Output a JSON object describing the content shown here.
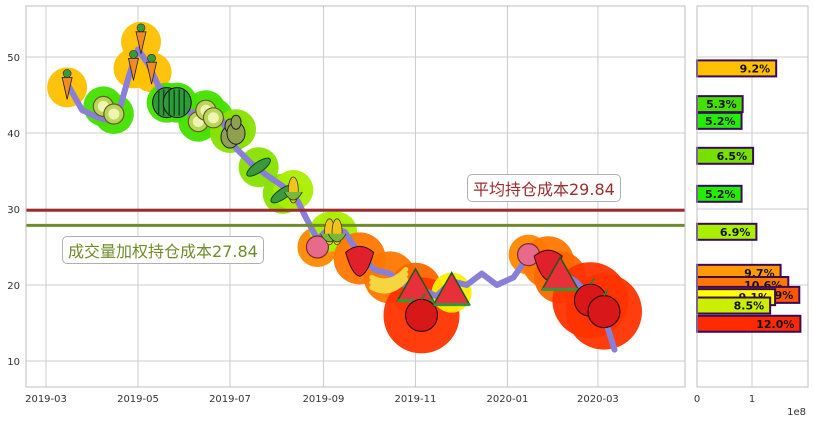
{
  "chart_data": [
    {
      "type": "line",
      "title": "",
      "xlabel": "",
      "ylabel": "",
      "x_tick_labels": [
        "2019-03",
        "2019-05",
        "2019-07",
        "2019-09",
        "2019-11",
        "2020-01",
        "2020-03"
      ],
      "y_tick_labels": [
        "10",
        "20",
        "30",
        "40",
        "50"
      ],
      "ylim": [
        6.5,
        56.5
      ],
      "grid": true,
      "series": [
        {
          "name": "price",
          "color": "#8a7fd6",
          "points": [
            [
              "2019-03-15",
              46.5
            ],
            [
              "2019-03-25",
              43.0
            ],
            [
              "2019-04-05",
              42.0
            ],
            [
              "2019-04-15",
              41.5
            ],
            [
              "2019-04-20",
              44.0
            ],
            [
              "2019-04-25",
              47.5
            ],
            [
              "2019-05-01",
              51.0
            ],
            [
              "2019-05-08",
              49.0
            ],
            [
              "2019-05-15",
              46.0
            ],
            [
              "2019-05-25",
              45.0
            ],
            [
              "2019-06-05",
              42.5
            ],
            [
              "2019-06-15",
              43.5
            ],
            [
              "2019-06-25",
              42.0
            ],
            [
              "2019-07-05",
              38.0
            ],
            [
              "2019-07-15",
              36.0
            ],
            [
              "2019-07-25",
              34.5
            ],
            [
              "2019-08-05",
              33.0
            ],
            [
              "2019-08-15",
              31.0
            ],
            [
              "2019-08-20",
              29.0
            ],
            [
              "2019-08-28",
              26.0
            ],
            [
              "2019-09-05",
              27.5
            ],
            [
              "2019-09-15",
              27.0
            ],
            [
              "2019-09-25",
              24.0
            ],
            [
              "2019-10-05",
              22.0
            ],
            [
              "2019-10-15",
              21.5
            ],
            [
              "2019-10-25",
              20.0
            ],
            [
              "2019-11-05",
              19.5
            ],
            [
              "2019-11-15",
              18.5
            ],
            [
              "2019-11-25",
              20.5
            ],
            [
              "2019-12-05",
              20.0
            ],
            [
              "2019-12-15",
              21.5
            ],
            [
              "2019-12-25",
              20.0
            ],
            [
              "2020-01-05",
              21.0
            ],
            [
              "2020-01-12",
              23.0
            ],
            [
              "2020-01-20",
              24.0
            ],
            [
              "2020-02-01",
              22.0
            ],
            [
              "2020-02-15",
              20.5
            ],
            [
              "2020-02-25",
              18.5
            ],
            [
              "2020-03-05",
              16.0
            ],
            [
              "2020-03-12",
              11.5
            ]
          ]
        }
      ],
      "hlines": [
        {
          "name": "avg-cost",
          "value": 29.84,
          "color": "#9b2d2d",
          "label": "平均持仓成本29.84"
        },
        {
          "name": "vwap-cost",
          "value": 27.84,
          "color": "#6f8c2a",
          "label": "成交量加权持仓成本27.84"
        }
      ],
      "markers": [
        {
          "x": "2019-03-15",
          "y": 46,
          "icon": "carrot",
          "glow": "#ffc000"
        },
        {
          "x": "2019-04-08",
          "y": 43.5,
          "icon": "kiwi",
          "glow": "#44e000"
        },
        {
          "x": "2019-04-15",
          "y": 42.5,
          "icon": "kiwi",
          "glow": "#44e000"
        },
        {
          "x": "2019-04-28",
          "y": 48.5,
          "icon": "carrot",
          "glow": "#ffc000"
        },
        {
          "x": "2019-05-03",
          "y": 52,
          "icon": "carrot",
          "glow": "#ffc000"
        },
        {
          "x": "2019-05-10",
          "y": 48,
          "icon": "carrot",
          "glow": "#ffc000"
        },
        {
          "x": "2019-05-20",
          "y": 44,
          "icon": "watermelon",
          "glow": "#44e000"
        },
        {
          "x": "2019-05-27",
          "y": 44,
          "icon": "watermelon",
          "glow": "#44e000"
        },
        {
          "x": "2019-06-10",
          "y": 41.5,
          "icon": "kiwi",
          "glow": "#44e000"
        },
        {
          "x": "2019-06-15",
          "y": 43,
          "icon": "kiwi",
          "glow": "#44e000"
        },
        {
          "x": "2019-06-20",
          "y": 42,
          "icon": "kiwi",
          "glow": "#44e000"
        },
        {
          "x": "2019-07-01",
          "y": 40,
          "icon": "pear",
          "glow": "#88e000"
        },
        {
          "x": "2019-07-05",
          "y": 40.5,
          "icon": "pear",
          "glow": "#88e000"
        },
        {
          "x": "2019-07-20",
          "y": 35.5,
          "icon": "peas",
          "glow": "#88e000"
        },
        {
          "x": "2019-08-05",
          "y": 32,
          "icon": "peas",
          "glow": "#88e000"
        },
        {
          "x": "2019-08-12",
          "y": 32.5,
          "icon": "corn",
          "glow": "#aaee00"
        },
        {
          "x": "2019-08-28",
          "y": 25,
          "icon": "radish",
          "glow": "#ff8800"
        },
        {
          "x": "2019-09-05",
          "y": 27,
          "icon": "corn",
          "glow": "#aaee00"
        },
        {
          "x": "2019-09-10",
          "y": 27,
          "icon": "corn",
          "glow": "#aaee00"
        },
        {
          "x": "2019-09-25",
          "y": 23.5,
          "icon": "strawberry",
          "glow": "#ff7700"
        },
        {
          "x": "2019-10-15",
          "y": 21,
          "icon": "banana",
          "glow": "#ff7700"
        },
        {
          "x": "2019-11-01",
          "y": 19.5,
          "icon": "watermelon-slice",
          "glow": "#ff6600"
        },
        {
          "x": "2019-11-05",
          "y": 16,
          "icon": "apple",
          "glow": "#ff3300"
        },
        {
          "x": "2019-11-25",
          "y": 19,
          "icon": "watermelon-slice",
          "glow": "#ffee00"
        },
        {
          "x": "2020-01-15",
          "y": 24,
          "icon": "radish",
          "glow": "#ff8800"
        },
        {
          "x": "2020-01-28",
          "y": 23,
          "icon": "strawberry",
          "glow": "#ff7700"
        },
        {
          "x": "2020-02-05",
          "y": 21,
          "icon": "watermelon-slice",
          "glow": "#ff6600"
        },
        {
          "x": "2020-02-25",
          "y": 18,
          "icon": "apple",
          "glow": "#ff3300"
        },
        {
          "x": "2020-03-05",
          "y": 16.5,
          "icon": "apple",
          "glow": "#ff3300"
        }
      ]
    },
    {
      "type": "bar",
      "orientation": "horizontal",
      "title": "",
      "xlabel": "",
      "x_tick_labels": [
        "0",
        "1"
      ],
      "x_scale_label": "1e8",
      "xlim": [
        0,
        2.0
      ],
      "ylim": [
        6.5,
        56.5
      ],
      "bars": [
        {
          "y": 48.5,
          "width": 1.44,
          "label": "9.2%",
          "color": "#ffc000"
        },
        {
          "y": 43.8,
          "width": 0.83,
          "label": "5.3%",
          "color": "#44e000"
        },
        {
          "y": 41.6,
          "width": 0.81,
          "label": "5.2%",
          "color": "#22ee00"
        },
        {
          "y": 37.0,
          "width": 1.02,
          "label": "6.5%",
          "color": "#77e000"
        },
        {
          "y": 32.0,
          "width": 0.81,
          "label": "5.2%",
          "color": "#22ee00"
        },
        {
          "y": 27.0,
          "width": 1.08,
          "label": "6.9%",
          "color": "#aaee00"
        },
        {
          "y": 21.6,
          "width": 1.52,
          "label": "9.7%",
          "color": "#ff9900"
        },
        {
          "y": 20.0,
          "width": 1.66,
          "label": "10.6%",
          "color": "#ff7700"
        },
        {
          "y": 18.7,
          "width": 1.86,
          "label": "11.9%",
          "color": "#ff5500"
        },
        {
          "y": 18.4,
          "width": 1.42,
          "label": "9.1%",
          "color": "#ffff00"
        },
        {
          "y": 17.3,
          "width": 1.33,
          "label": "8.5%",
          "color": "#ccee00"
        },
        {
          "y": 14.9,
          "width": 1.88,
          "label": "12.0%",
          "color": "#ff2a00"
        }
      ]
    }
  ],
  "annotations": {
    "avg_cost": "平均持仓成本29.84",
    "vwap_cost": "成交量加权持仓成本27.84"
  },
  "side_axis": {
    "tick0": "0",
    "tick1": "1",
    "scale": "1e8"
  }
}
